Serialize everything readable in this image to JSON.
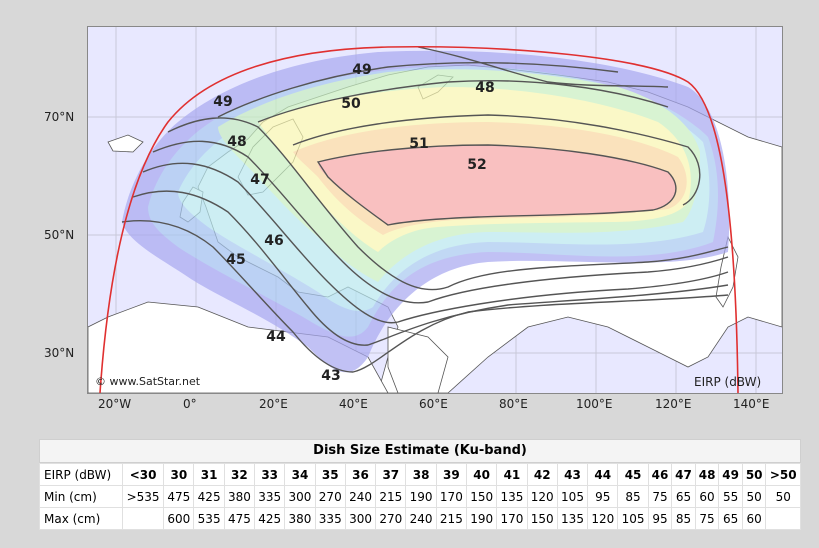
{
  "map": {
    "lat_labels": [
      "70°N",
      "50°N",
      "30°N"
    ],
    "lon_labels": [
      "20°W",
      "0°",
      "20°E",
      "40°E",
      "60°E",
      "80°E",
      "100°E",
      "120°E",
      "140°E"
    ],
    "watermark": "© www.SatStar.net",
    "unit_label": "EIRP (dBW)",
    "contour_labels": [
      "49",
      "48",
      "49",
      "50",
      "51",
      "52",
      "48",
      "47",
      "46",
      "45",
      "44",
      "43"
    ],
    "colors": {
      "ocean": "#e8e8ff",
      "land_border": "#555555",
      "coverage_edge": "#e03030",
      "contour_line": "#555555",
      "beam_center": "#f7a6a6",
      "beam_inner": "#f9d6a0",
      "beam_yellow": "#f8f6b0",
      "beam_green": "#c8efc0",
      "beam_cyan": "#b8e8ef",
      "beam_blue": "#a8c8f0",
      "beam_violet": "#a8a8f0"
    }
  },
  "table": {
    "title": "Dish Size Estimate (Ku-band)",
    "rows": [
      {
        "label": "EIRP (dBW)",
        "cells": [
          "<30",
          "30",
          "31",
          "32",
          "33",
          "34",
          "35",
          "36",
          "37",
          "38",
          "39",
          "40",
          "41",
          "42",
          "43",
          "44",
          "45",
          "46",
          "47",
          "48",
          "49",
          "50",
          ">50"
        ]
      },
      {
        "label": "Min (cm)",
        "cells": [
          ">535",
          "475",
          "425",
          "380",
          "335",
          "300",
          "270",
          "240",
          "215",
          "190",
          "170",
          "150",
          "135",
          "120",
          "105",
          "95",
          "85",
          "75",
          "65",
          "60",
          "55",
          "50",
          "50"
        ]
      },
      {
        "label": "Max (cm)",
        "cells": [
          "",
          "600",
          "535",
          "475",
          "425",
          "380",
          "335",
          "300",
          "270",
          "240",
          "215",
          "190",
          "170",
          "150",
          "135",
          "120",
          "105",
          "95",
          "85",
          "75",
          "65",
          "60",
          ""
        ]
      }
    ]
  }
}
